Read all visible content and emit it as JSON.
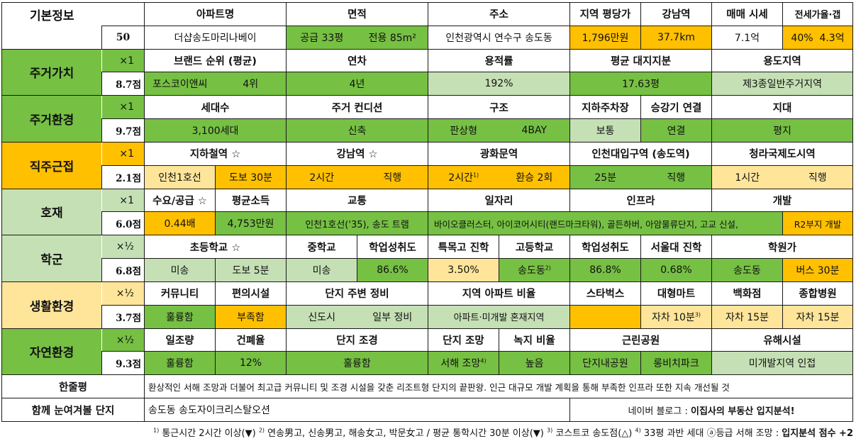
{
  "colors": {
    "green": "#76C043",
    "light_green": "#C5E0B4",
    "orange": "#FFC000",
    "light_orange": "#FFE59A"
  },
  "basic": {
    "label": "기본정보",
    "total": "50",
    "headers": [
      "아파트명",
      "면적",
      "주소",
      "지역 평당가",
      "강남역",
      "매매 시세",
      "전세가율·갭"
    ],
    "apt_name": "더샵송도마리나베이",
    "area_supply": "공급 33평",
    "area_exclusive": "전용 85m²",
    "address": "인천광역시 연수구 송도동",
    "price_per_pyeong": "1,796만원",
    "gangnam_distance": "37.7km",
    "sale_price": "7.1억",
    "jeonse_ratio": "40%",
    "gap": "4.3억"
  },
  "residential_value": {
    "label": "주거가치",
    "mult": "×1",
    "score": "8.7점",
    "headers": [
      "브랜드 순위 (평균)",
      "연차",
      "용적률",
      "평균 대지지분",
      "용도지역"
    ],
    "brand": "포스코이앤씨",
    "brand_rank": "4위",
    "age": "4년",
    "far": "192%",
    "land_share": "17.63평",
    "zoning": "제3종일반주거지역"
  },
  "residential_env": {
    "label": "주거환경",
    "mult": "×1",
    "score": "9.7점",
    "headers": [
      "세대수",
      "주거 컨디션",
      "구조",
      "지하주차장",
      "승강기 연결",
      "지대"
    ],
    "households": "3,100세대",
    "condition": "신축",
    "structure": "판상형",
    "bay": "4BAY",
    "parking": "보통",
    "elevator": "연결",
    "terrain": "평지"
  },
  "commute": {
    "label": "직주근접",
    "mult": "×1",
    "score": "2.1점",
    "headers": [
      "지하철역 ☆",
      "강남역 ☆",
      "광화문역",
      "인천대입구역 (송도역)",
      "청라국제도시역"
    ],
    "station": "인천1호선",
    "station_walk": "도보 30분",
    "gangnam_time": "2시간",
    "gangnam_mode": "직행",
    "gwanghwamun_time": "2시간",
    "gwanghwamun_mark": "1)",
    "gwanghwamun_mode": "환승 2회",
    "incheon_time": "25분",
    "incheon_mode": "직행",
    "cheongna_time": "1시간",
    "cheongna_mode": "직행"
  },
  "development": {
    "label": "호재",
    "mult": "×1",
    "score": "6.0점",
    "headers": [
      "수요/공급 ☆",
      "평균소득",
      "교통",
      "일자리",
      "인프라",
      "개발"
    ],
    "supply_demand": "0.44배",
    "income": "4,753만원",
    "transport": "인천1호선('35), 송도 트램",
    "jobs_infra": "바이오클러스터, 아이코어시티(랜드마크타워), 골든하버, 아암물류단지, 고교 신설,",
    "development": "R2부지 개발"
  },
  "school": {
    "label": "학군",
    "mult": "×½",
    "score": "6.8점",
    "headers": [
      "초등학교 ☆",
      "중학교",
      "학업성취도",
      "특목고 진학",
      "고등학교",
      "학업성취도",
      "서울대 진학",
      "학원가"
    ],
    "elementary": "미송",
    "elementary_walk": "도보 5분",
    "middle": "미송",
    "middle_score": "86.6%",
    "special_hs": "3.50%",
    "high": "송도동",
    "high_mark": "2)",
    "high_score": "86.8%",
    "snu": "0.68%",
    "academy": "송도동",
    "academy_bus": "버스 30분"
  },
  "living": {
    "label": "생활환경",
    "mult": "×½",
    "score": "3.7점",
    "headers": [
      "커뮤니티",
      "편의시설",
      "단지 주변 정비",
      "지역 아파트 비율",
      "스타벅스",
      "대형마트",
      "백화점",
      "종합병원"
    ],
    "community": "훌륭함",
    "convenience": "부족함",
    "surroundings": "신도시",
    "surroundings_note": "일부 정비",
    "apt_ratio": "아파트·미개발 혼재지역",
    "starbucks": "",
    "mart": "자차 10분",
    "mart_mark": "3)",
    "department": "자차 15분",
    "hospital": "자차 15분"
  },
  "nature": {
    "label": "자연환경",
    "mult": "×½",
    "score": "9.3점",
    "headers": [
      "일조량",
      "건폐율",
      "단지 조경",
      "단지 조망",
      "녹지 비율",
      "근린공원",
      "유해시설"
    ],
    "sunlight": "훌륭함",
    "bcr": "12%",
    "landscape": "훌륭함",
    "view": "서해 조망",
    "view_mark": "4)",
    "green_ratio": "높음",
    "park1": "단지내공원",
    "park2": "롱비치파크",
    "hazard": "미개발지역 인접"
  },
  "summary": {
    "label": "한줄평",
    "text": "환상적인 서해 조망과 더불어 최고급 커뮤니티 및 조경 시설을 갖춘 리조트형 단지의 끝판왕. 인근 대규모 개발 계획을 통해 부족한 인프라 또한 지속 개선될 것"
  },
  "compare": {
    "label": "함께 눈여겨볼 단지",
    "text": "송도동 송도자이크리스탈오션",
    "blog_prefix": "네이버 블로그 : ",
    "blog_name": "이집사의 부동산 입지분석!"
  },
  "footnote": {
    "m1": "1)",
    "t1": " 통근시간 2시간 이상(▼) ",
    "m2": "2)",
    "t2": " 연송男고, 신송男고, 해송女고, 박문女고 / 평균 통학시간 30분 이상(▼) ",
    "m3": "3)",
    "t3": " 코스트코 송도점(△) ",
    "m4": "4)",
    "t4": " 33평 과반 세대 ⓐ등급 서해 조망 : ",
    "bonus": "입지분석 점수 +2"
  }
}
